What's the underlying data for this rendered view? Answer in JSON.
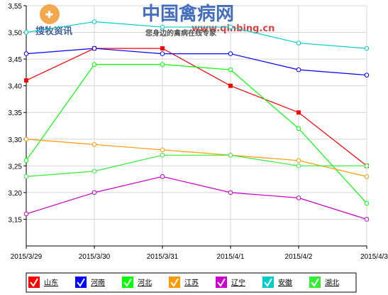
{
  "watermark": {
    "logo_text": "搜牧资讯",
    "site_name": "中国禽病网",
    "site_url": "www.qinbing.cn",
    "slogan": "您身边的禽病在线专家"
  },
  "chart_data": {
    "type": "line",
    "x": [
      "2015/3/29",
      "2015/3/30",
      "2015/3/31",
      "2015/4/1",
      "2015/4/2",
      "2015/4/3"
    ],
    "ylim": [
      3.1,
      3.55
    ],
    "yticks": [
      3.15,
      3.2,
      3.25,
      3.3,
      3.35,
      3.4,
      3.45,
      3.5,
      3.55
    ],
    "ytick_labels": [
      "3,15",
      "3,20",
      "3,25",
      "3,30",
      "3,35",
      "3,40",
      "3,45",
      "3,50",
      "3,55"
    ],
    "grid": true,
    "legend_position": "bottom",
    "series": [
      {
        "name": "山东",
        "color": "#ff0000",
        "marker": "square",
        "values": [
          3.41,
          3.47,
          3.47,
          3.4,
          3.35,
          3.25
        ]
      },
      {
        "name": "河南",
        "color": "#0000ff",
        "marker": "circle",
        "values": [
          3.46,
          3.47,
          3.46,
          3.46,
          3.43,
          3.42
        ]
      },
      {
        "name": "河北",
        "color": "#00ff00",
        "marker": "circle",
        "values": [
          3.26,
          3.44,
          3.44,
          3.43,
          3.32,
          3.18
        ]
      },
      {
        "name": "江苏",
        "color": "#ff9900",
        "marker": "circle",
        "values": [
          3.3,
          3.29,
          3.28,
          3.27,
          3.26,
          3.23
        ]
      },
      {
        "name": "辽宁",
        "color": "#cc00cc",
        "marker": "circle",
        "values": [
          3.16,
          3.2,
          3.23,
          3.2,
          3.19,
          3.15
        ]
      },
      {
        "name": "安徽",
        "color": "#00cccc",
        "marker": "circle",
        "values": [
          3.5,
          3.52,
          3.51,
          3.51,
          3.48,
          3.47
        ]
      },
      {
        "name": "湖北",
        "color": "#33ee33",
        "marker": "circle",
        "values": [
          3.23,
          3.24,
          3.27,
          3.27,
          3.25,
          3.25
        ]
      }
    ]
  }
}
